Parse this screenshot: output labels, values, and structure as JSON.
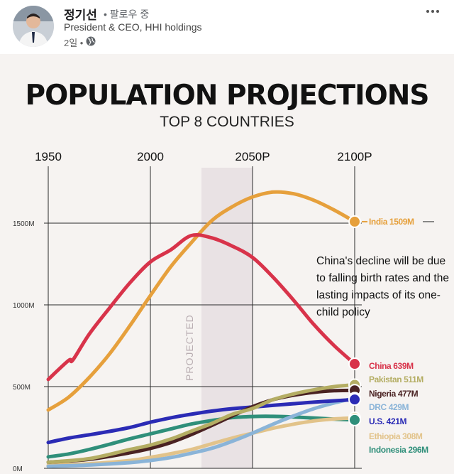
{
  "post": {
    "author": "정기선",
    "follow_state": "• 팔로우 중",
    "headline": "President & CEO, HHI holdings",
    "time_ago": "2일 •",
    "visibility_icon": "globe-icon",
    "more_icon": "ellipsis-icon"
  },
  "chart_data": {
    "type": "line",
    "title": "POPULATION PROJECTIONS",
    "subtitle": "TOP 8 COUNTRIES",
    "xlabel": "",
    "ylabel": "",
    "x_ticks": [
      "1950",
      "2000",
      "2050P",
      "2100P"
    ],
    "x_tick_values": [
      1950,
      2000,
      2050,
      2100
    ],
    "y_ticks": [
      "0M",
      "500M",
      "1000M",
      "1500M"
    ],
    "y_tick_values": [
      0,
      500,
      1000,
      1500
    ],
    "xlim": [
      1950,
      2100
    ],
    "ylim": [
      0,
      1700
    ],
    "projected_band": [
      2025,
      2050
    ],
    "projected_label": "PROJECTED",
    "grid": true,
    "annotation": "China's decline will be due to falling birth rates and the lasting impacts of its one-child policy",
    "series": [
      {
        "name": "India",
        "label": "India 1509M",
        "color": "#e6a03c",
        "points": [
          [
            1950,
            357
          ],
          [
            1960,
            435
          ],
          [
            1970,
            555
          ],
          [
            1980,
            700
          ],
          [
            1990,
            873
          ],
          [
            2000,
            1057
          ],
          [
            2010,
            1234
          ],
          [
            2020,
            1380
          ],
          [
            2030,
            1515
          ],
          [
            2040,
            1600
          ],
          [
            2050,
            1660
          ],
          [
            2060,
            1690
          ],
          [
            2070,
            1680
          ],
          [
            2080,
            1640
          ],
          [
            2090,
            1580
          ],
          [
            2100,
            1509
          ]
        ]
      },
      {
        "name": "China",
        "label": "China 639M",
        "color": "#d8334a",
        "points": [
          [
            1950,
            544
          ],
          [
            1960,
            660
          ],
          [
            1962,
            662
          ],
          [
            1970,
            820
          ],
          [
            1980,
            981
          ],
          [
            1990,
            1135
          ],
          [
            2000,
            1263
          ],
          [
            2010,
            1337
          ],
          [
            2020,
            1424
          ],
          [
            2030,
            1410
          ],
          [
            2040,
            1360
          ],
          [
            2050,
            1290
          ],
          [
            2060,
            1170
          ],
          [
            2070,
            1030
          ],
          [
            2080,
            880
          ],
          [
            2090,
            750
          ],
          [
            2100,
            639
          ]
        ]
      },
      {
        "name": "Pakistan",
        "label": "Pakistan 511M",
        "color": "#b4ad63",
        "points": [
          [
            1950,
            37
          ],
          [
            1970,
            59
          ],
          [
            1990,
            115
          ],
          [
            2000,
            142
          ],
          [
            2010,
            179
          ],
          [
            2020,
            227
          ],
          [
            2030,
            274
          ],
          [
            2040,
            330
          ],
          [
            2050,
            366
          ],
          [
            2060,
            420
          ],
          [
            2070,
            455
          ],
          [
            2080,
            480
          ],
          [
            2090,
            500
          ],
          [
            2100,
            511
          ]
        ]
      },
      {
        "name": "Nigeria",
        "label": "Nigeria 477M",
        "color": "#4a2222",
        "points": [
          [
            1950,
            37
          ],
          [
            1970,
            55
          ],
          [
            1990,
            95
          ],
          [
            2000,
            122
          ],
          [
            2010,
            158
          ],
          [
            2020,
            206
          ],
          [
            2030,
            262
          ],
          [
            2040,
            320
          ],
          [
            2050,
            377
          ],
          [
            2060,
            420
          ],
          [
            2070,
            447
          ],
          [
            2080,
            465
          ],
          [
            2090,
            475
          ],
          [
            2100,
            477
          ]
        ]
      },
      {
        "name": "DRC",
        "label": "DRC 429M",
        "color": "#8ab4d8",
        "points": [
          [
            1950,
            12
          ],
          [
            1970,
            20
          ],
          [
            1990,
            35
          ],
          [
            2000,
            48
          ],
          [
            2010,
            66
          ],
          [
            2020,
            92
          ],
          [
            2030,
            122
          ],
          [
            2040,
            165
          ],
          [
            2050,
            215
          ],
          [
            2060,
            270
          ],
          [
            2070,
            320
          ],
          [
            2080,
            365
          ],
          [
            2090,
            400
          ],
          [
            2100,
            429
          ]
        ]
      },
      {
        "name": "U.S.",
        "label": "U.S. 421M",
        "color": "#2b2bb5",
        "points": [
          [
            1950,
            158
          ],
          [
            1960,
            185
          ],
          [
            1970,
            205
          ],
          [
            1980,
            226
          ],
          [
            1990,
            250
          ],
          [
            2000,
            282
          ],
          [
            2010,
            309
          ],
          [
            2020,
            331
          ],
          [
            2030,
            350
          ],
          [
            2040,
            365
          ],
          [
            2050,
            375
          ],
          [
            2060,
            385
          ],
          [
            2070,
            395
          ],
          [
            2080,
            405
          ],
          [
            2090,
            413
          ],
          [
            2100,
            421
          ]
        ]
      },
      {
        "name": "Ethiopia",
        "label": "Ethiopia 308M",
        "color": "#e2c38a",
        "points": [
          [
            1950,
            18
          ],
          [
            1970,
            28
          ],
          [
            1990,
            48
          ],
          [
            2000,
            67
          ],
          [
            2010,
            89
          ],
          [
            2020,
            115
          ],
          [
            2030,
            150
          ],
          [
            2040,
            185
          ],
          [
            2050,
            215
          ],
          [
            2060,
            245
          ],
          [
            2070,
            270
          ],
          [
            2080,
            290
          ],
          [
            2090,
            302
          ],
          [
            2100,
            308
          ]
        ]
      },
      {
        "name": "Indonesia",
        "label": "Indonesia 296M",
        "color": "#2f8f7a",
        "points": [
          [
            1950,
            70
          ],
          [
            1960,
            88
          ],
          [
            1970,
            115
          ],
          [
            1980,
            147
          ],
          [
            1990,
            181
          ],
          [
            2000,
            211
          ],
          [
            2010,
            241
          ],
          [
            2020,
            271
          ],
          [
            2030,
            292
          ],
          [
            2040,
            310
          ],
          [
            2050,
            317
          ],
          [
            2060,
            318
          ],
          [
            2070,
            314
          ],
          [
            2080,
            308
          ],
          [
            2090,
            301
          ],
          [
            2100,
            296
          ]
        ]
      }
    ]
  }
}
